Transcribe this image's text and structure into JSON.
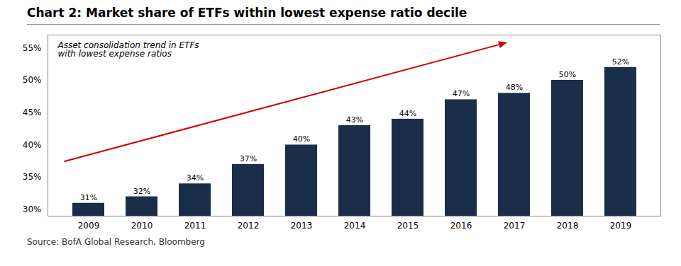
{
  "chart_data": {
    "type": "bar",
    "title": "Chart 2: Market share of ETFs within lowest expense ratio decile",
    "source": "Source: BofA Global Research, Bloomberg",
    "annotation": "Asset consolidation trend in ETFs\nwith lowest expense ratios",
    "categories": [
      "2009",
      "2010",
      "2011",
      "2012",
      "2013",
      "2014",
      "2015",
      "2016",
      "2017",
      "2018",
      "2019"
    ],
    "values": [
      31,
      32,
      34,
      37,
      40,
      43,
      44,
      47,
      48,
      50,
      52
    ],
    "value_labels": [
      "31%",
      "32%",
      "34%",
      "37%",
      "40%",
      "43%",
      "44%",
      "47%",
      "48%",
      "50%",
      "52%"
    ],
    "data_labels": true,
    "color": "#1a2e4a",
    "ylim": [
      29,
      57
    ],
    "yticks": [
      {
        "value": 30,
        "label": "30%"
      },
      {
        "value": 35,
        "label": "35%"
      },
      {
        "value": 40,
        "label": "40%"
      },
      {
        "value": 45,
        "label": "45%"
      },
      {
        "value": 50,
        "label": "50%"
      },
      {
        "value": 55,
        "label": "55%"
      }
    ],
    "grid": false
  }
}
